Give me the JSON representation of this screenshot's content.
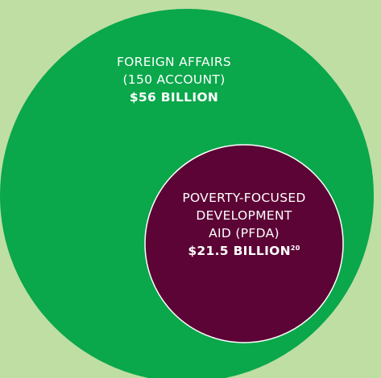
{
  "colors": {
    "background": "#bfdea4",
    "outer_circle": "#0aa74b",
    "inner_circle": "#5c0435",
    "text": "#ffffff"
  },
  "outer": {
    "line1": "FOREIGN AFFAIRS",
    "line2": "(150 ACCOUNT)",
    "amount": "$56 BILLION"
  },
  "inner": {
    "line1": "POVERTY-FOCUSED",
    "line2": "DEVELOPMENT",
    "line3": "AID (PFDA)",
    "amount": "$21.5 BILLION",
    "footnote": "20"
  }
}
